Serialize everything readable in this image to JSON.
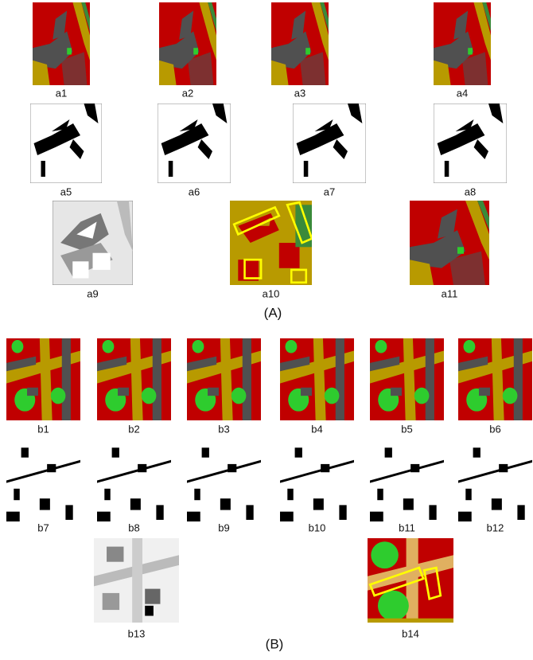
{
  "panels_a": [
    "a1",
    "a2",
    "a3",
    "a4",
    "a5",
    "a6",
    "a7",
    "a8",
    "a9",
    "a10",
    "a11"
  ],
  "caption_a": "(A)",
  "panels_b": [
    "b1",
    "b2",
    "b3",
    "b4",
    "b5",
    "b6",
    "b7",
    "b8",
    "b9",
    "b10",
    "b11",
    "b12",
    "b13",
    "b14"
  ],
  "caption_b": "(B)"
}
